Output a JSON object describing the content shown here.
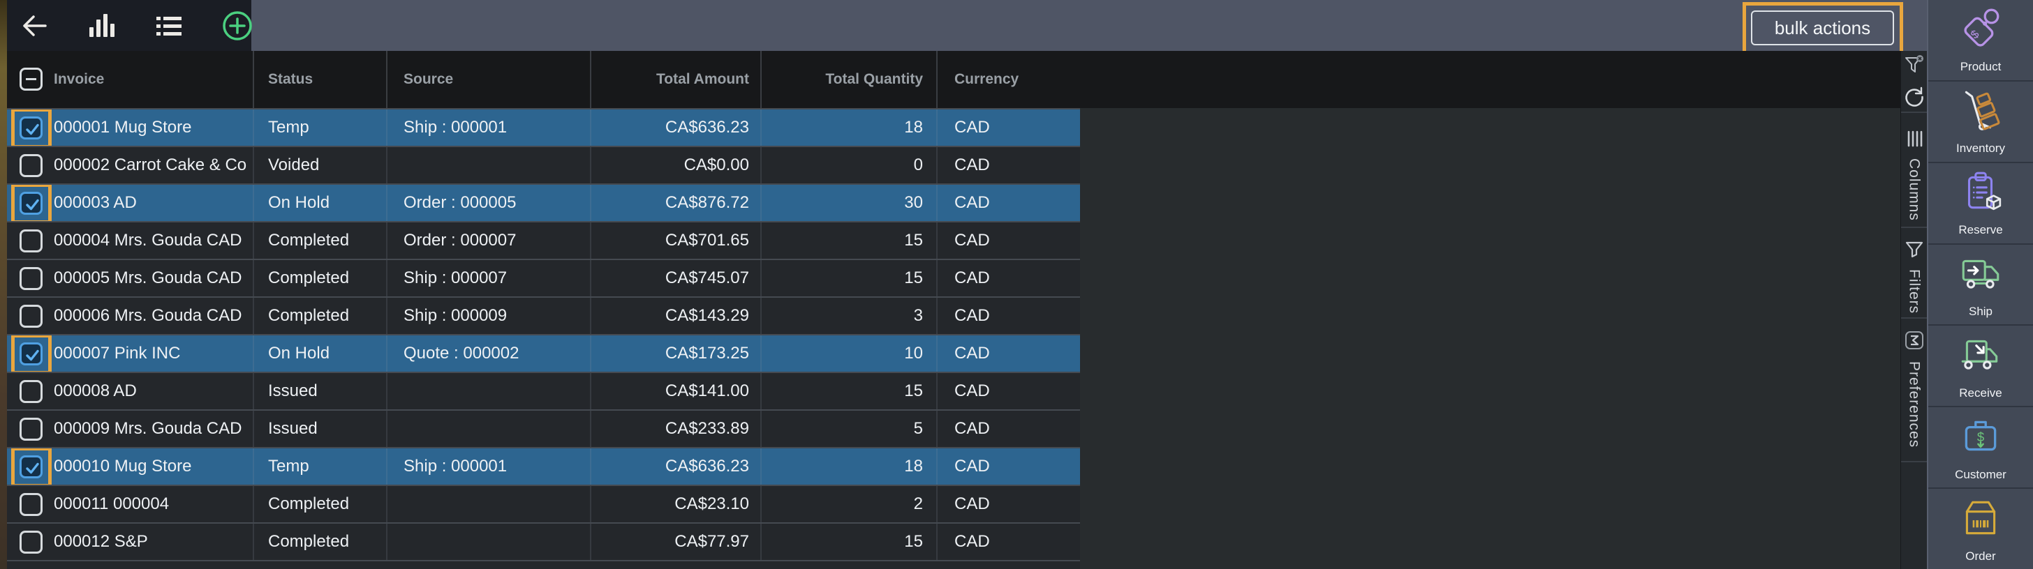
{
  "topbar": {
    "bulk_actions_label": "bulk actions",
    "icons": [
      "back-arrow-icon",
      "bar-chart-icon",
      "list-view-icon",
      "add-circle-icon"
    ]
  },
  "table": {
    "headers": {
      "invoice": "Invoice",
      "status": "Status",
      "source": "Source",
      "total_amount": "Total Amount",
      "total_quantity": "Total Quantity",
      "currency": "Currency"
    },
    "rows": [
      {
        "invoice": "000001 Mug Store",
        "status": "Temp",
        "source": "Ship : 000001",
        "total_amount": "CA$636.23",
        "total_quantity": "18",
        "currency": "CAD",
        "selected": true
      },
      {
        "invoice": "000002 Carrot Cake & Co",
        "status": "Voided",
        "source": "",
        "total_amount": "CA$0.00",
        "total_quantity": "0",
        "currency": "CAD",
        "selected": false
      },
      {
        "invoice": "000003 AD",
        "status": "On Hold",
        "source": "Order : 000005",
        "total_amount": "CA$876.72",
        "total_quantity": "30",
        "currency": "CAD",
        "selected": true
      },
      {
        "invoice": "000004 Mrs. Gouda CAD",
        "status": "Completed",
        "source": "Order : 000007",
        "total_amount": "CA$701.65",
        "total_quantity": "15",
        "currency": "CAD",
        "selected": false
      },
      {
        "invoice": "000005 Mrs. Gouda CAD",
        "status": "Completed",
        "source": "Ship : 000007",
        "total_amount": "CA$745.07",
        "total_quantity": "15",
        "currency": "CAD",
        "selected": false
      },
      {
        "invoice": "000006 Mrs. Gouda CAD",
        "status": "Completed",
        "source": "Ship : 000009",
        "total_amount": "CA$143.29",
        "total_quantity": "3",
        "currency": "CAD",
        "selected": false
      },
      {
        "invoice": "000007 Pink INC",
        "status": "On Hold",
        "source": "Quote : 000002",
        "total_amount": "CA$173.25",
        "total_quantity": "10",
        "currency": "CAD",
        "selected": true
      },
      {
        "invoice": "000008 AD",
        "status": "Issued",
        "source": "",
        "total_amount": "CA$141.00",
        "total_quantity": "15",
        "currency": "CAD",
        "selected": false
      },
      {
        "invoice": "000009 Mrs. Gouda CAD",
        "status": "Issued",
        "source": "",
        "total_amount": "CA$233.89",
        "total_quantity": "5",
        "currency": "CAD",
        "selected": false
      },
      {
        "invoice": "000010 Mug Store",
        "status": "Temp",
        "source": "Ship : 000001",
        "total_amount": "CA$636.23",
        "total_quantity": "18",
        "currency": "CAD",
        "selected": true
      },
      {
        "invoice": "000011 000004",
        "status": "Completed",
        "source": "",
        "total_amount": "CA$23.10",
        "total_quantity": "2",
        "currency": "CAD",
        "selected": false
      },
      {
        "invoice": "000012 S&P",
        "status": "Completed",
        "source": "",
        "total_amount": "CA$77.97",
        "total_quantity": "15",
        "currency": "CAD",
        "selected": false
      }
    ]
  },
  "side_toolbar": {
    "icons": [
      "filter-clear-icon",
      "refresh-icon"
    ],
    "tabs": [
      {
        "label": "Columns",
        "icon": "columns-icon"
      },
      {
        "label": "Filters",
        "icon": "filter-icon"
      },
      {
        "label": "Preferences",
        "icon": "sigma-icon"
      }
    ]
  },
  "app_sidebar": {
    "items": [
      {
        "label": "Product",
        "icon": "price-tag-icon"
      },
      {
        "label": "Inventory",
        "icon": "hand-truck-icon"
      },
      {
        "label": "Reserve",
        "icon": "clipboard-box-icon"
      },
      {
        "label": "Ship",
        "icon": "truck-out-icon"
      },
      {
        "label": "Receive",
        "icon": "truck-in-icon"
      },
      {
        "label": "Customer",
        "icon": "briefcase-dollar-icon"
      },
      {
        "label": "Order",
        "icon": "box-barcode-icon"
      }
    ]
  },
  "colors": {
    "accent_orange": "#e9a63e",
    "selected_row": "#2d6590",
    "row_bg": "#24272b",
    "header_bg": "#17181a",
    "topbar_bg": "#4f5565",
    "nav_bg": "#1a1d24",
    "sidebar_bg": "#424956",
    "strip_bg": "#25292d",
    "checkbox_checked": "#4fa0e2",
    "add_icon_green": "#4bd080"
  }
}
